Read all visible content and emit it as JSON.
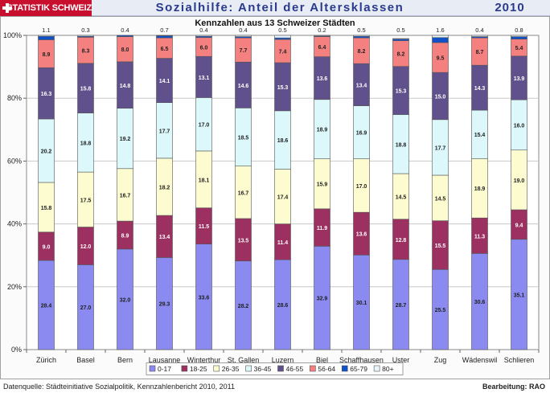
{
  "header": {
    "logo_text": "STATISTIK SCHWEIZ",
    "title": "Sozialhilfe: Anteil der Altersklassen",
    "year": "2010"
  },
  "footer": {
    "source": "Datenquelle: Städteinitiative Sozialpolitik, Kennzahlenbericht 2010, 2011",
    "credit": "Bearbeitung: RAO"
  },
  "chart_data": {
    "type": "bar",
    "stacked": true,
    "title": "Kennzahlen aus 13 Schweizer Städten",
    "ylim": [
      0,
      100
    ],
    "y_ticks": [
      "0%",
      "20%",
      "40%",
      "60%",
      "80%",
      "100%"
    ],
    "grid": true,
    "legend_position": "bottom",
    "categories": [
      "Zürich",
      "Basel",
      "Bern",
      "Lausanne",
      "Winterthur",
      "St. Gallen",
      "Luzern",
      "Biel",
      "Schaffhausen",
      "Uster",
      "Zug",
      "Wädenswil",
      "Schlieren"
    ],
    "series": [
      {
        "name": "0-17",
        "color": "#8a8af0",
        "values": [
          28.4,
          27.0,
          32.0,
          29.3,
          33.6,
          28.2,
          28.6,
          32.9,
          30.1,
          28.7,
          25.5,
          30.6,
          35.1
        ]
      },
      {
        "name": "18-25",
        "color": "#9c3060",
        "values": [
          9.0,
          12.0,
          8.9,
          13.4,
          11.5,
          13.5,
          11.4,
          11.9,
          13.6,
          12.8,
          15.5,
          11.3,
          9.4
        ]
      },
      {
        "name": "26-35",
        "color": "#fdfcd0",
        "values": [
          15.8,
          17.5,
          16.7,
          18.2,
          18.1,
          16.7,
          17.4,
          15.9,
          17.0,
          14.5,
          14.5,
          18.9,
          19.0
        ]
      },
      {
        "name": "36-45",
        "color": "#dcf8fb",
        "values": [
          20.2,
          18.8,
          19.2,
          17.7,
          17.0,
          18.5,
          18.6,
          18.9,
          16.9,
          18.8,
          17.7,
          15.4,
          16.0
        ]
      },
      {
        "name": "46-55",
        "color": "#60508c",
        "values": [
          16.3,
          15.8,
          14.8,
          14.1,
          13.1,
          14.6,
          15.3,
          13.6,
          13.4,
          15.3,
          15.0,
          14.3,
          13.9
        ]
      },
      {
        "name": "56-64",
        "color": "#f58080",
        "values": [
          8.9,
          8.3,
          8.0,
          6.5,
          6.0,
          7.7,
          7.4,
          6.4,
          8.2,
          8.2,
          9.5,
          8.7,
          5.4
        ]
      },
      {
        "name": "65-79",
        "color": "#1050c8",
        "values": [
          1.1,
          0.3,
          0.4,
          0.7,
          0.4,
          0.4,
          0.5,
          0.2,
          0.5,
          0.5,
          1.6,
          0.4,
          0.8
        ]
      },
      {
        "name": "80+",
        "color": "#e8f4fb",
        "values": [
          0.3,
          0.3,
          0.0,
          0.1,
          0.3,
          0.4,
          0.8,
          0.2,
          0.3,
          0.2,
          0.7,
          0.4,
          0.4
        ]
      }
    ],
    "top_labels": [
      "1.1",
      "0.3",
      "0.4",
      "0.7",
      "0.4",
      "0.4",
      "0.5",
      "0.2",
      "0.5",
      "0.5",
      "1.6",
      "0.4",
      "0.8"
    ],
    "segment_labels": [
      [
        "28.4",
        "9.0",
        "15.8",
        "20.2",
        "16.3",
        "8.9"
      ],
      [
        "27.0",
        "12.0",
        "17.5",
        "18.8",
        "15.8",
        "8.3"
      ],
      [
        "32.0",
        "8.9",
        "16.7",
        "19.2",
        "14.8",
        "8.0"
      ],
      [
        "29.3",
        "13.4",
        "18.2",
        "17.7",
        "14.1",
        "6.5"
      ],
      [
        "33.6",
        "11.5",
        "18.1",
        "17.0",
        "13.1",
        "6.0"
      ],
      [
        "28.2",
        "13.5",
        "16.7",
        "18.5",
        "14.6",
        "7.7"
      ],
      [
        "28.6",
        "11.4",
        "17.4",
        "18.6",
        "15.3",
        "7.4"
      ],
      [
        "32.9",
        "11.9",
        "15.9",
        "18.9",
        "13.6",
        "6.4"
      ],
      [
        "30.1",
        "13.6",
        "17.0",
        "16.9",
        "13.4",
        "8.2"
      ],
      [
        "28.7",
        "12.8",
        "14.5",
        "18.8",
        "15.3",
        "8.2"
      ],
      [
        "25.5",
        "15.5",
        "14.5",
        "17.7",
        "15.0",
        "9.5"
      ],
      [
        "30.6",
        "11.3",
        "18.9",
        "15.4",
        "14.3",
        "8.7"
      ],
      [
        "35.1",
        "9.4",
        "19.0",
        "16.0",
        "13.9",
        "5.4"
      ]
    ]
  }
}
